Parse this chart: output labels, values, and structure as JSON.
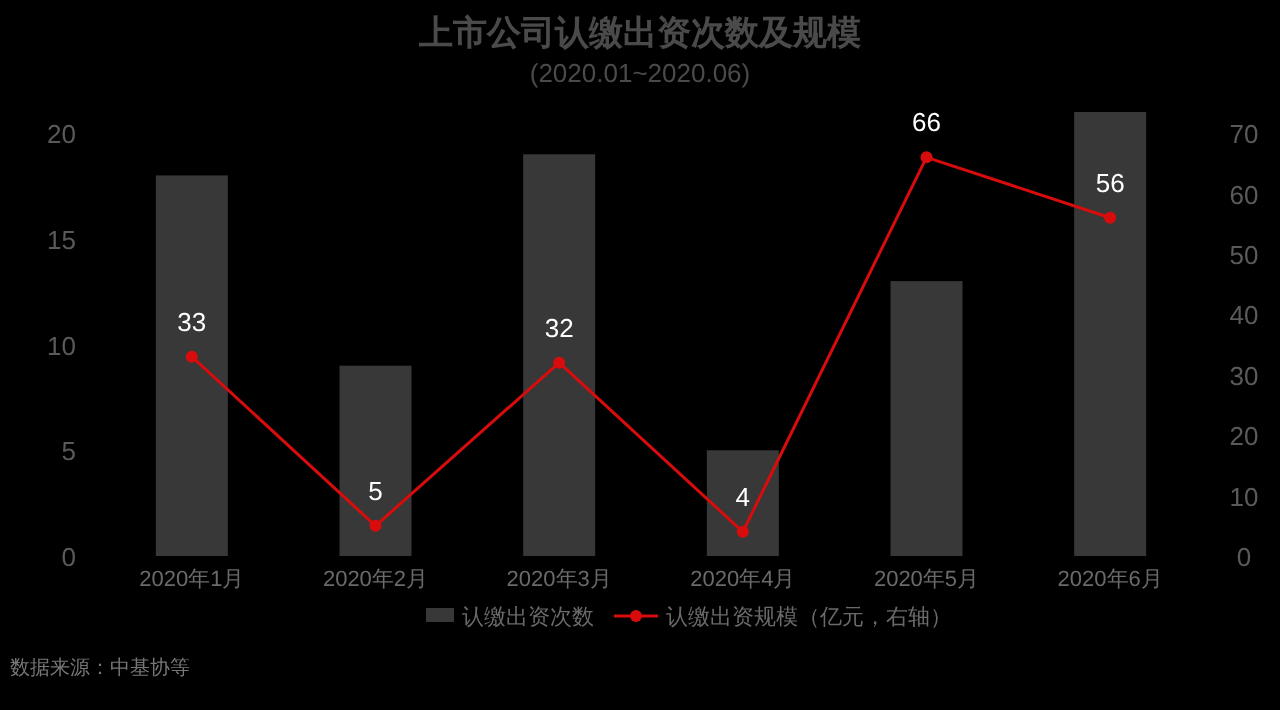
{
  "chart_data": {
    "type": "bar",
    "title": "上市公司认缴出资次数及规模",
    "subtitle": "(2020.01~2020.06)",
    "categories": [
      "2020年1月",
      "2020年2月",
      "2020年3月",
      "2020年4月",
      "2020年5月",
      "2020年6月"
    ],
    "series": [
      {
        "name": "认缴出资次数",
        "color": "#383838",
        "values": [
          18,
          9,
          19,
          5,
          13,
          21
        ]
      },
      {
        "name": "认缴出资规模（亿元，右轴）",
        "type": "line",
        "axis": "y2",
        "color": "#d80c0c",
        "marker": "circle",
        "data_labels": true,
        "values": [
          33,
          5,
          32,
          4,
          66,
          56
        ]
      }
    ],
    "ylim": [
      0,
      21
    ],
    "yticks": [
      0,
      5,
      10,
      15,
      20
    ],
    "y2lim": [
      0,
      73.5
    ],
    "y2ticks": [
      0,
      10,
      20,
      30,
      40,
      50,
      60,
      70
    ],
    "grid": false,
    "legend": "bottom",
    "annotations": [
      "数据来源：中基协等"
    ]
  }
}
